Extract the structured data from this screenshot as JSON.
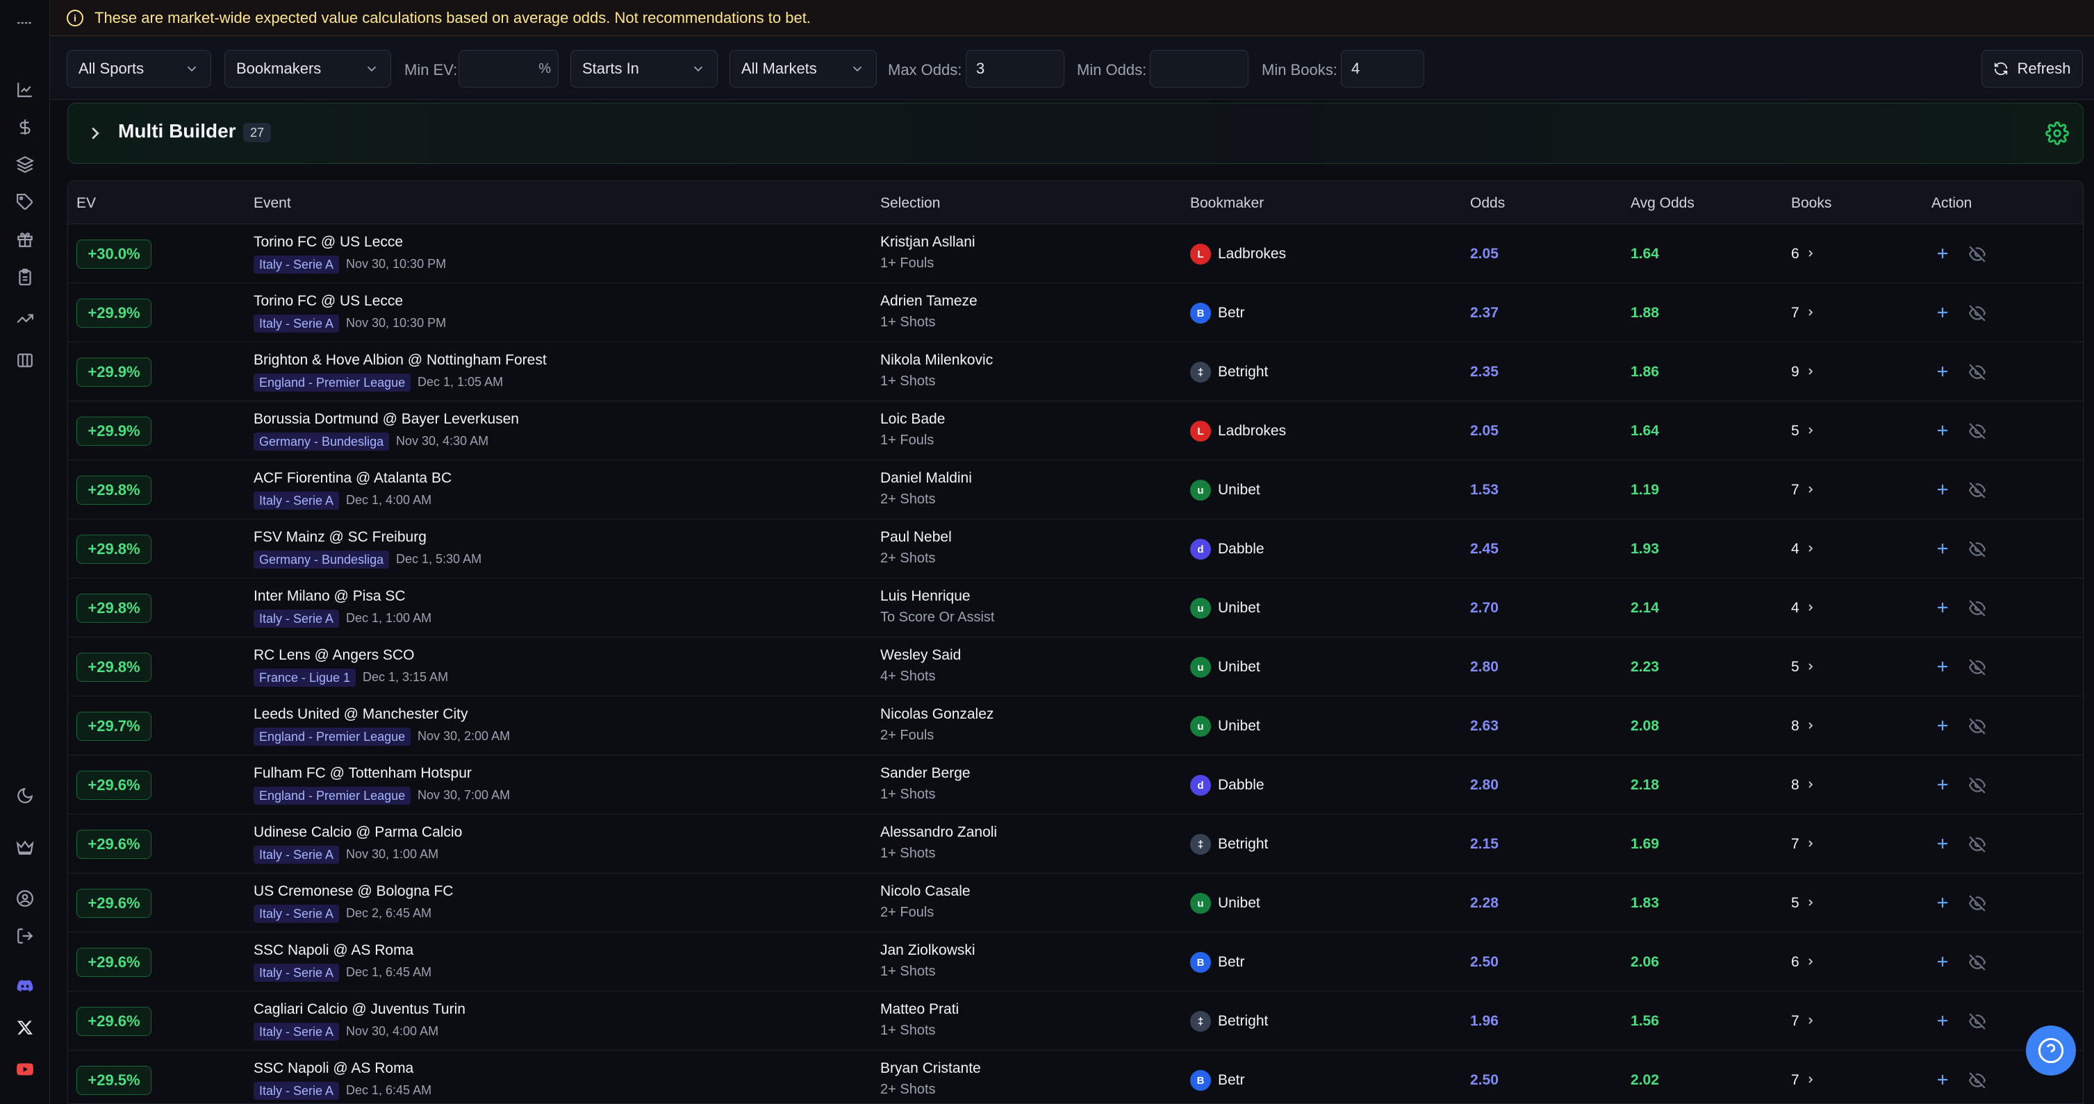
{
  "notice": {
    "text": "These are market-wide expected value calculations based on average odds. Not recommendations to bet."
  },
  "filters": {
    "sports": "All Sports",
    "bookmakers": "Bookmakers",
    "min_ev_label": "Min EV:",
    "min_ev_value": "",
    "min_ev_suffix": "%",
    "starts_in": "Starts In",
    "markets": "All Markets",
    "max_odds_label": "Max Odds:",
    "max_odds_value": "3",
    "min_odds_label": "Min Odds:",
    "min_odds_value": "",
    "min_books_label": "Min Books:",
    "min_books_value": "4",
    "refresh_label": "Refresh"
  },
  "multi_builder": {
    "title": "Multi Builder",
    "count": "27"
  },
  "columns": {
    "ev": "EV",
    "event": "Event",
    "selection": "Selection",
    "bookmaker": "Bookmaker",
    "odds": "Odds",
    "avg_odds": "Avg Odds",
    "books": "Books",
    "action": "Action"
  },
  "rows": [
    {
      "ev": "+30.0%",
      "event": "Torino FC @ US Lecce",
      "league": "Italy - Serie A",
      "time": "Nov 30, 10:30 PM",
      "player": "Kristjan Asllani",
      "market": "1+ Fouls",
      "bookmaker": "Ladbrokes",
      "odds": "2.05",
      "avg": "1.64",
      "books": "6"
    },
    {
      "ev": "+29.9%",
      "event": "Torino FC @ US Lecce",
      "league": "Italy - Serie A",
      "time": "Nov 30, 10:30 PM",
      "player": "Adrien Tameze",
      "market": "1+ Shots",
      "bookmaker": "Betr",
      "odds": "2.37",
      "avg": "1.88",
      "books": "7"
    },
    {
      "ev": "+29.9%",
      "event": "Brighton & Hove Albion @ Nottingham Forest",
      "league": "England - Premier League",
      "time": "Dec 1, 1:05 AM",
      "player": "Nikola Milenkovic",
      "market": "1+ Shots",
      "bookmaker": "Betright",
      "odds": "2.35",
      "avg": "1.86",
      "books": "9"
    },
    {
      "ev": "+29.9%",
      "event": "Borussia Dortmund @ Bayer Leverkusen",
      "league": "Germany - Bundesliga",
      "time": "Nov 30, 4:30 AM",
      "player": "Loic Bade",
      "market": "1+ Fouls",
      "bookmaker": "Ladbrokes",
      "odds": "2.05",
      "avg": "1.64",
      "books": "5"
    },
    {
      "ev": "+29.8%",
      "event": "ACF Fiorentina @ Atalanta BC",
      "league": "Italy - Serie A",
      "time": "Dec 1, 4:00 AM",
      "player": "Daniel Maldini",
      "market": "2+ Shots",
      "bookmaker": "Unibet",
      "odds": "1.53",
      "avg": "1.19",
      "books": "7"
    },
    {
      "ev": "+29.8%",
      "event": "FSV Mainz @ SC Freiburg",
      "league": "Germany - Bundesliga",
      "time": "Dec 1, 5:30 AM",
      "player": "Paul Nebel",
      "market": "2+ Shots",
      "bookmaker": "Dabble",
      "odds": "2.45",
      "avg": "1.93",
      "books": "4"
    },
    {
      "ev": "+29.8%",
      "event": "Inter Milano @ Pisa SC",
      "league": "Italy - Serie A",
      "time": "Dec 1, 1:00 AM",
      "player": "Luis Henrique",
      "market": "To Score Or Assist",
      "bookmaker": "Unibet",
      "odds": "2.70",
      "avg": "2.14",
      "books": "4"
    },
    {
      "ev": "+29.8%",
      "event": "RC Lens @ Angers SCO",
      "league": "France - Ligue 1",
      "time": "Dec 1, 3:15 AM",
      "player": "Wesley Said",
      "market": "4+ Shots",
      "bookmaker": "Unibet",
      "odds": "2.80",
      "avg": "2.23",
      "books": "5"
    },
    {
      "ev": "+29.7%",
      "event": "Leeds United @ Manchester City",
      "league": "England - Premier League",
      "time": "Nov 30, 2:00 AM",
      "player": "Nicolas Gonzalez",
      "market": "2+ Fouls",
      "bookmaker": "Unibet",
      "odds": "2.63",
      "avg": "2.08",
      "books": "8"
    },
    {
      "ev": "+29.6%",
      "event": "Fulham FC @ Tottenham Hotspur",
      "league": "England - Premier League",
      "time": "Nov 30, 7:00 AM",
      "player": "Sander Berge",
      "market": "1+ Shots",
      "bookmaker": "Dabble",
      "odds": "2.80",
      "avg": "2.18",
      "books": "8"
    },
    {
      "ev": "+29.6%",
      "event": "Udinese Calcio @ Parma Calcio",
      "league": "Italy - Serie A",
      "time": "Nov 30, 1:00 AM",
      "player": "Alessandro Zanoli",
      "market": "1+ Shots",
      "bookmaker": "Betright",
      "odds": "2.15",
      "avg": "1.69",
      "books": "7"
    },
    {
      "ev": "+29.6%",
      "event": "US Cremonese @ Bologna FC",
      "league": "Italy - Serie A",
      "time": "Dec 2, 6:45 AM",
      "player": "Nicolo Casale",
      "market": "2+ Fouls",
      "bookmaker": "Unibet",
      "odds": "2.28",
      "avg": "1.83",
      "books": "5"
    },
    {
      "ev": "+29.6%",
      "event": "SSC Napoli @ AS Roma",
      "league": "Italy - Serie A",
      "time": "Dec 1, 6:45 AM",
      "player": "Jan Ziolkowski",
      "market": "1+ Shots",
      "bookmaker": "Betr",
      "odds": "2.50",
      "avg": "2.06",
      "books": "6"
    },
    {
      "ev": "+29.6%",
      "event": "Cagliari Calcio @ Juventus Turin",
      "league": "Italy - Serie A",
      "time": "Nov 30, 4:00 AM",
      "player": "Matteo Prati",
      "market": "1+ Shots",
      "bookmaker": "Betright",
      "odds": "1.96",
      "avg": "1.56",
      "books": "7"
    },
    {
      "ev": "+29.5%",
      "event": "SSC Napoli @ AS Roma",
      "league": "Italy - Serie A",
      "time": "Dec 1, 6:45 AM",
      "player": "Bryan Cristante",
      "market": "2+ Shots",
      "bookmaker": "Betr",
      "odds": "2.50",
      "avg": "2.02",
      "books": "7"
    }
  ],
  "bookmaker_logos": {
    "Ladbrokes": {
      "glyph": "L",
      "color": "#dc2626"
    },
    "Betr": {
      "glyph": "B",
      "color": "#2563eb"
    },
    "Betright": {
      "glyph": "‡",
      "color": "#374151"
    },
    "Unibet": {
      "glyph": "u",
      "color": "#15803d"
    },
    "Dabble": {
      "glyph": "d",
      "color": "#4f46e5"
    }
  },
  "colors": {
    "ev_green": "#4ade80",
    "odds_purple": "#818cf8",
    "accent_blue": "#3b82f6"
  }
}
